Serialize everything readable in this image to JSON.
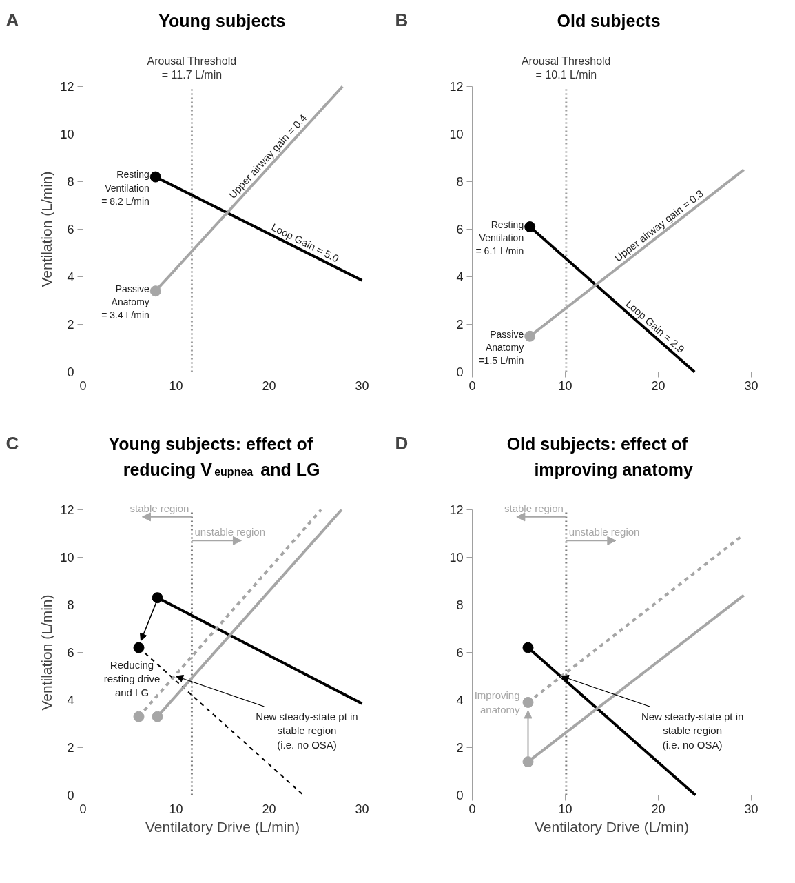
{
  "chart_data": [
    {
      "type": "line",
      "title": "Young subjects",
      "ylabel": "Ventilation (L/min)",
      "xlim": [
        0,
        30
      ],
      "xticks": [
        0,
        10,
        20,
        30
      ],
      "ylim": [
        0,
        12
      ],
      "yticks": [
        0,
        2,
        4,
        6,
        8,
        10,
        12
      ],
      "series": [
        {
          "type": "line",
          "color": "#000000",
          "x": [
            7.8,
            30
          ],
          "values": [
            8.2,
            3.85
          ]
        },
        {
          "type": "line",
          "color": "#a6a6a6",
          "x": [
            7.8,
            27.9
          ],
          "values": [
            3.4,
            12
          ]
        },
        {
          "type": "scatter",
          "marker": "circle",
          "color": "#000000",
          "x": [
            7.8
          ],
          "values": [
            8.2
          ]
        },
        {
          "type": "scatter",
          "marker": "circle",
          "color": "#a6a6a6",
          "x": [
            7.8
          ],
          "values": [
            3.4
          ]
        }
      ],
      "ref_lines": [
        {
          "axis": "x",
          "value": 11.7,
          "label": "Arousal Threshold\n= 11.7 L/min",
          "color": "#a0a0a0",
          "line_style": "dotted"
        }
      ],
      "annotations": [
        "A",
        {
          "text": "Resting\nVentilation\n= 8.2 L/min",
          "x": 7.8,
          "y": 8.2
        },
        {
          "text": "Upper airway gain = 0.4",
          "x": 20.5,
          "y": 8.83
        },
        {
          "text": "Loop Gain = 5.0",
          "x": 23.5,
          "y": 5.12
        },
        {
          "text": "Passive\nAnatomy\n= 3.4 L/min",
          "x": 7.8,
          "y": 3.4
        }
      ]
    },
    {
      "type": "line",
      "title": "Old subjects",
      "xlim": [
        0,
        30
      ],
      "xticks": [
        0,
        10,
        20,
        30
      ],
      "ylim": [
        0,
        12
      ],
      "yticks": [
        0,
        2,
        4,
        6,
        8,
        10,
        12
      ],
      "series": [
        {
          "type": "line",
          "color": "#000000",
          "x": [
            6.2,
            23.9
          ],
          "values": [
            6.1,
            0
          ]
        },
        {
          "type": "line",
          "color": "#a6a6a6",
          "x": [
            6.2,
            29.2
          ],
          "values": [
            1.5,
            8.5
          ]
        },
        {
          "type": "scatter",
          "marker": "circle",
          "color": "#000000",
          "x": [
            6.2
          ],
          "values": [
            6.1
          ]
        },
        {
          "type": "scatter",
          "marker": "circle",
          "color": "#a6a6a6",
          "x": [
            6.2
          ],
          "values": [
            1.5
          ]
        }
      ],
      "ref_lines": [
        {
          "axis": "x",
          "value": 10.1,
          "label": "Arousal Threshold\n= 10.1 L/min",
          "color": "#a0a0a0",
          "line_style": "dotted"
        }
      ],
      "annotations": [
        "B",
        {
          "text": "Resting\nVentilation\n= 6.1 L/min",
          "x": 6.2,
          "y": 6.1
        },
        {
          "text": "Upper airway gain = 0.3",
          "x": 20.6,
          "y": 5.88
        },
        {
          "text": "Loop Gain = 2.9",
          "x": 19.1,
          "y": 1.65
        },
        {
          "text": "Passive\nAnatomy\n=1.5 L/min",
          "x": 6.2,
          "y": 1.5
        }
      ]
    },
    {
      "type": "line",
      "title": "Young subjects: effect of\nreducing V$_{eupnea}$ and LG",
      "xlabel": "Ventilatory Drive (L/min)",
      "ylabel": "Ventilation (L/min)",
      "xlim": [
        0,
        30
      ],
      "xticks": [
        0,
        10,
        20,
        30
      ],
      "ylim": [
        0,
        12
      ],
      "yticks": [
        0,
        2,
        4,
        6,
        8,
        10,
        12
      ],
      "series": [
        {
          "type": "line",
          "color": "#000000",
          "x": [
            8.0,
            30
          ],
          "values": [
            8.3,
            3.85
          ]
        },
        {
          "type": "line",
          "color": "#000000",
          "x": [
            6.0,
            23.7
          ],
          "values": [
            6.2,
            0
          ],
          "line_style": "dashed"
        },
        {
          "type": "line",
          "color": "#a6a6a6",
          "x": [
            8.0,
            27.8
          ],
          "values": [
            3.3,
            12
          ]
        },
        {
          "type": "line",
          "color": "#a6a6a6",
          "x": [
            6.0,
            25.6
          ],
          "values": [
            3.3,
            12
          ],
          "line_style": "dashed"
        },
        {
          "type": "scatter",
          "marker": "circle",
          "color": "#000000",
          "x": [
            8.0,
            6.0
          ],
          "values": [
            8.3,
            6.2
          ]
        },
        {
          "type": "scatter",
          "marker": "circle",
          "color": "#a6a6a6",
          "x": [
            8.0,
            6.0
          ],
          "values": [
            3.3,
            3.3
          ]
        }
      ],
      "ref_lines": [
        {
          "axis": "x",
          "value": 11.7,
          "color": "#808080",
          "line_style": "dotted"
        }
      ],
      "annotations": [
        "C",
        {
          "text": "stable region",
          "x": 11.7,
          "y": 11.7
        },
        {
          "text": "unstable region",
          "x": 11.7,
          "y": 10.7
        },
        {
          "text": "Reducing\nresting drive\nand LG",
          "x": 6.0,
          "y": 6.2
        },
        {
          "text": "New steady-state pt in\nstable region\n(i.e. no OSA)",
          "x": 10.0,
          "y": 5.0
        }
      ]
    },
    {
      "type": "line",
      "title": "Old subjects: effect of\nimproving anatomy",
      "xlabel": "Ventilatory Drive (L/min)",
      "xlim": [
        0,
        30
      ],
      "xticks": [
        0,
        10,
        20,
        30
      ],
      "ylim": [
        0,
        12
      ],
      "yticks": [
        0,
        2,
        4,
        6,
        8,
        10,
        12
      ],
      "series": [
        {
          "type": "line",
          "color": "#000000",
          "x": [
            6.0,
            24.0
          ],
          "values": [
            6.2,
            0
          ]
        },
        {
          "type": "line",
          "color": "#a6a6a6",
          "x": [
            6.0,
            29.2
          ],
          "values": [
            1.4,
            8.4
          ]
        },
        {
          "type": "line",
          "color": "#a6a6a6",
          "x": [
            6.0,
            29.0
          ],
          "values": [
            3.9,
            10.9
          ],
          "line_style": "dashed"
        },
        {
          "type": "scatter",
          "marker": "circle",
          "color": "#000000",
          "x": [
            6.0
          ],
          "values": [
            6.2
          ]
        },
        {
          "type": "scatter",
          "marker": "circle",
          "color": "#a6a6a6",
          "x": [
            6.0,
            6.0
          ],
          "values": [
            1.4,
            3.9
          ]
        }
      ],
      "ref_lines": [
        {
          "axis": "x",
          "value": 10.1,
          "color": "#808080",
          "line_style": "dotted"
        }
      ],
      "annotations": [
        "D",
        {
          "text": "stable region",
          "x": 10.1,
          "y": 11.7
        },
        {
          "text": "unstable region",
          "x": 10.1,
          "y": 10.7
        },
        {
          "text": "Improving\nanatomy",
          "x": 6.0,
          "y": 3.9
        },
        {
          "text": "New steady-state pt in\nstable region\n(i.e. no OSA)",
          "x": 9.6,
          "y": 5.0
        }
      ]
    }
  ]
}
